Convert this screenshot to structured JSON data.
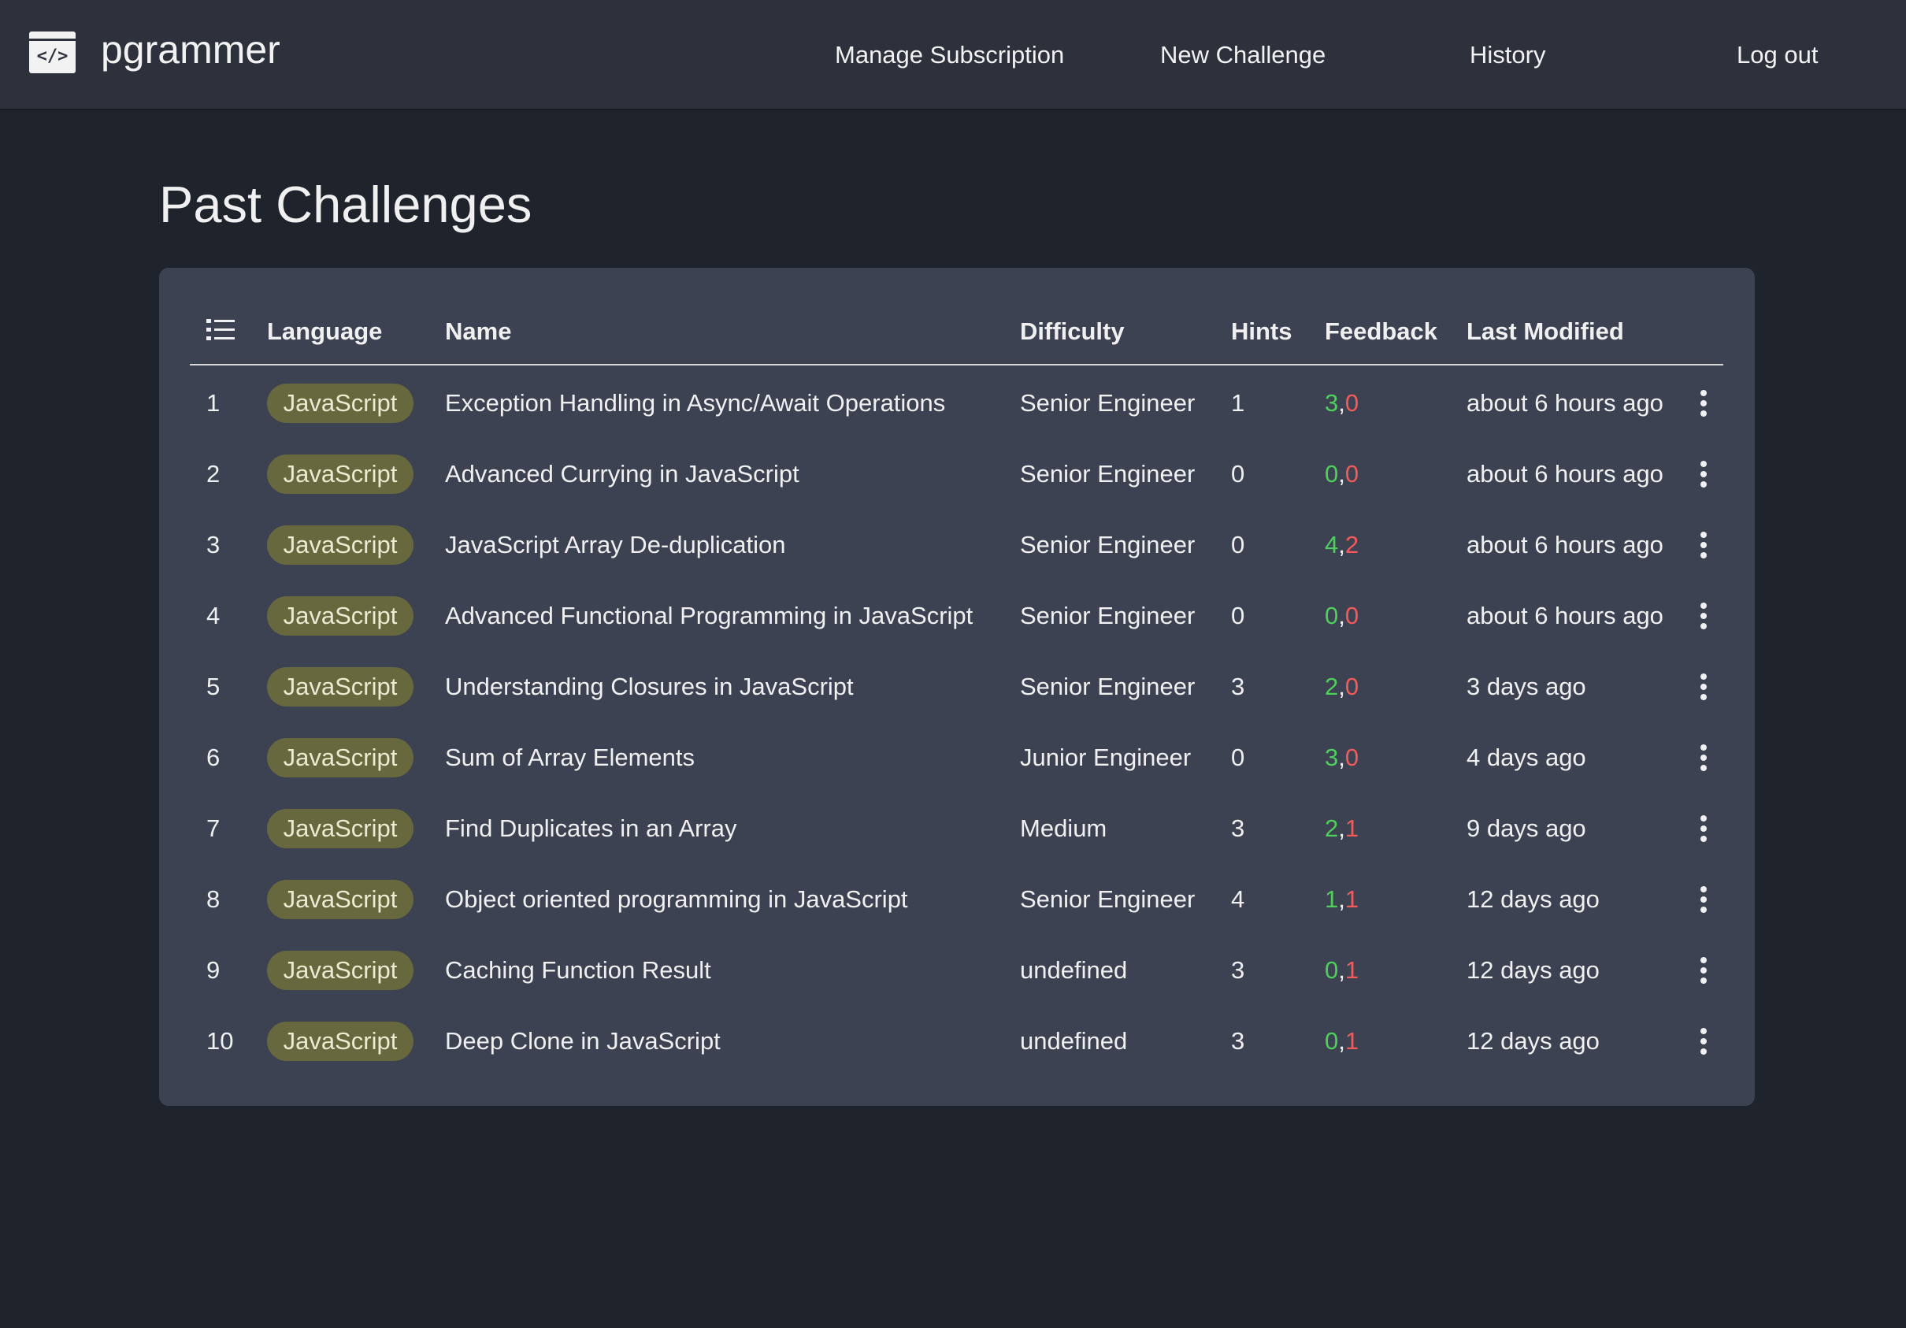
{
  "header": {
    "brand": "pgrammer",
    "nav": [
      "Manage Subscription",
      "New Challenge",
      "History",
      "Log out"
    ]
  },
  "page": {
    "title": "Past Challenges"
  },
  "table": {
    "columns": [
      "Language",
      "Name",
      "Difficulty",
      "Hints",
      "Feedback",
      "Last Modified"
    ],
    "feedback_separator": ",",
    "rows": [
      {
        "index": 1,
        "language": "JavaScript",
        "name": "Exception Handling in Async/Await Operations",
        "difficulty": "Senior Engineer",
        "hints": 1,
        "feedback": [
          3,
          0
        ],
        "modified": "about 6 hours ago"
      },
      {
        "index": 2,
        "language": "JavaScript",
        "name": "Advanced Currying in JavaScript",
        "difficulty": "Senior Engineer",
        "hints": 0,
        "feedback": [
          0,
          0
        ],
        "modified": "about 6 hours ago"
      },
      {
        "index": 3,
        "language": "JavaScript",
        "name": "JavaScript Array De-duplication",
        "difficulty": "Senior Engineer",
        "hints": 0,
        "feedback": [
          4,
          2
        ],
        "modified": "about 6 hours ago"
      },
      {
        "index": 4,
        "language": "JavaScript",
        "name": "Advanced Functional Programming in JavaScript",
        "difficulty": "Senior Engineer",
        "hints": 0,
        "feedback": [
          0,
          0
        ],
        "modified": "about 6 hours ago"
      },
      {
        "index": 5,
        "language": "JavaScript",
        "name": "Understanding Closures in JavaScript",
        "difficulty": "Senior Engineer",
        "hints": 3,
        "feedback": [
          2,
          0
        ],
        "modified": "3 days ago"
      },
      {
        "index": 6,
        "language": "JavaScript",
        "name": "Sum of Array Elements",
        "difficulty": "Junior Engineer",
        "hints": 0,
        "feedback": [
          3,
          0
        ],
        "modified": "4 days ago"
      },
      {
        "index": 7,
        "language": "JavaScript",
        "name": "Find Duplicates in an Array",
        "difficulty": "Medium",
        "hints": 3,
        "feedback": [
          2,
          1
        ],
        "modified": "9 days ago"
      },
      {
        "index": 8,
        "language": "JavaScript",
        "name": "Object oriented programming in JavaScript",
        "difficulty": "Senior Engineer",
        "hints": 4,
        "feedback": [
          1,
          1
        ],
        "modified": "12 days ago"
      },
      {
        "index": 9,
        "language": "JavaScript",
        "name": "Caching Function Result",
        "difficulty": "undefined",
        "hints": 3,
        "feedback": [
          0,
          1
        ],
        "modified": "12 days ago"
      },
      {
        "index": 10,
        "language": "JavaScript",
        "name": "Deep Clone in JavaScript",
        "difficulty": "undefined",
        "hints": 3,
        "feedback": [
          0,
          1
        ],
        "modified": "12 days ago"
      }
    ]
  }
}
